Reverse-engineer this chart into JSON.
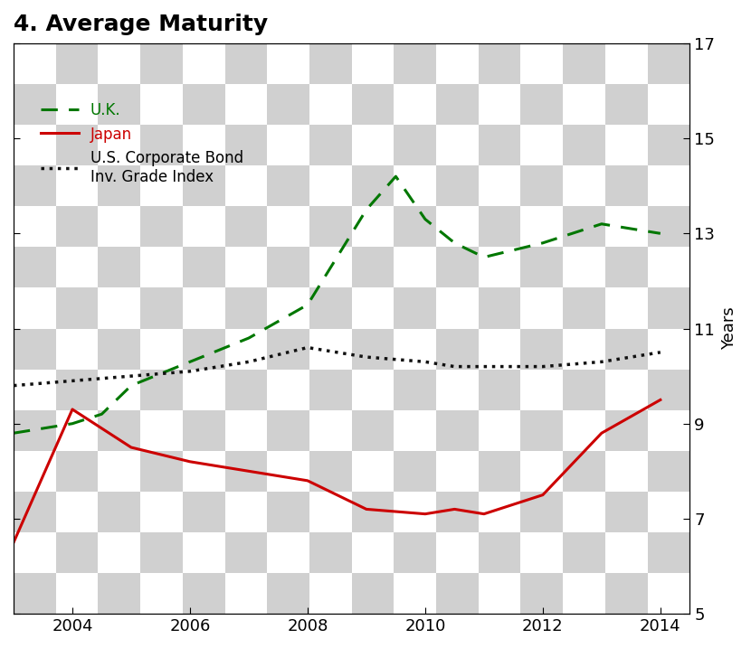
{
  "title": "4. Average Maturity",
  "ylabel": "Years",
  "ylim": [
    5,
    17
  ],
  "yticks": [
    5,
    7,
    9,
    11,
    13,
    15,
    17
  ],
  "xlim": [
    2003,
    2014.5
  ],
  "xticks": [
    2004,
    2006,
    2008,
    2010,
    2012,
    2014
  ],
  "background_checker": true,
  "uk_x": [
    2003,
    2004,
    2004.5,
    2005,
    2006,
    2007,
    2008,
    2008.5,
    2009,
    2009.5,
    2010,
    2010.5,
    2011,
    2012,
    2013,
    2014
  ],
  "uk_y": [
    8.8,
    9.0,
    9.2,
    9.8,
    10.3,
    10.8,
    11.5,
    12.5,
    13.5,
    14.2,
    13.3,
    12.8,
    12.5,
    12.8,
    13.2,
    13.0
  ],
  "japan_x": [
    2003,
    2004,
    2005,
    2006,
    2007,
    2008,
    2009,
    2010,
    2010.5,
    2011,
    2012,
    2013,
    2014
  ],
  "japan_y": [
    6.5,
    9.3,
    8.5,
    8.2,
    8.0,
    7.8,
    7.2,
    7.1,
    7.2,
    7.1,
    7.5,
    8.8,
    9.5
  ],
  "us_x": [
    2003,
    2004,
    2005,
    2006,
    2007,
    2008,
    2009,
    2010,
    2010.5,
    2011,
    2012,
    2013,
    2014
  ],
  "us_y": [
    9.8,
    9.9,
    10.0,
    10.1,
    10.3,
    10.6,
    10.4,
    10.3,
    10.2,
    10.2,
    10.2,
    10.3,
    10.5
  ],
  "uk_color": "#007700",
  "japan_color": "#cc0000",
  "us_color": "#111111",
  "legend_uk": "U.K.",
  "legend_japan": "Japan",
  "legend_us": "U.S. Corporate Bond\nInv. Grade Index",
  "title_fontsize": 18,
  "axis_fontsize": 13,
  "legend_fontsize": 12,
  "tick_fontsize": 13
}
